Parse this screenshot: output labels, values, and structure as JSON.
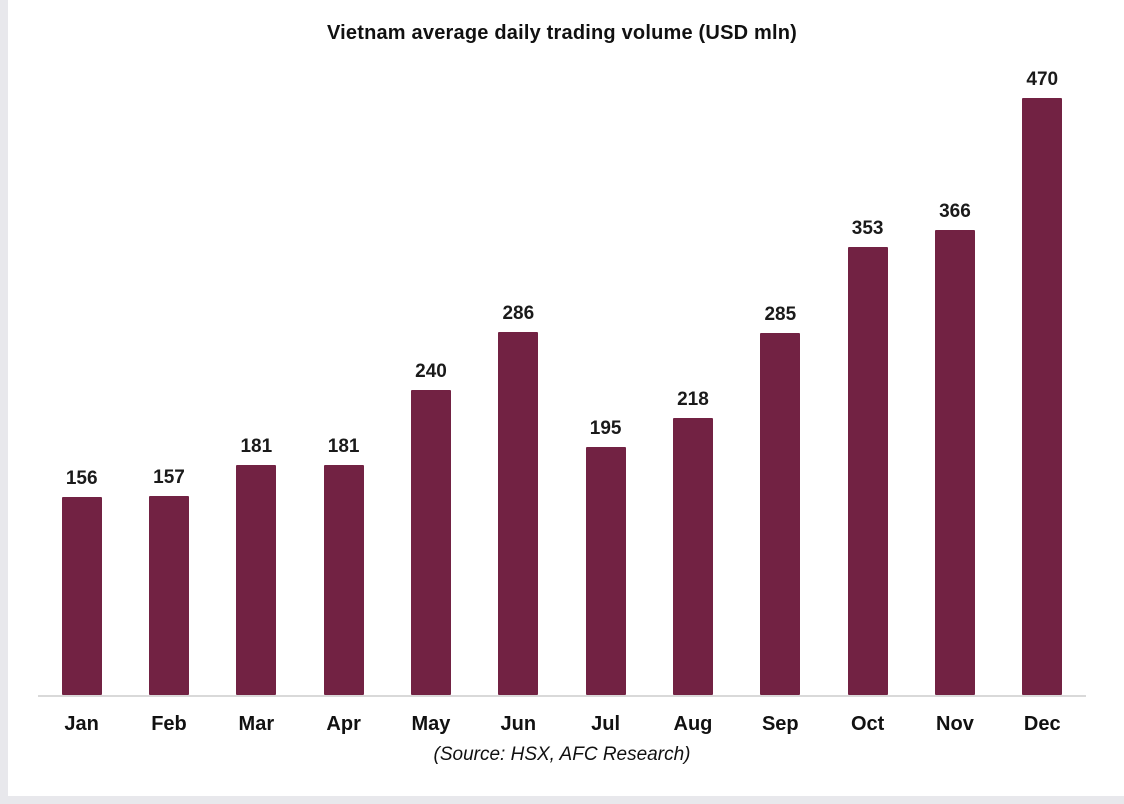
{
  "chart_data": {
    "type": "bar",
    "title": "Vietnam average daily trading volume (USD mln)",
    "categories": [
      "Jan",
      "Feb",
      "Mar",
      "Apr",
      "May",
      "Jun",
      "Jul",
      "Aug",
      "Sep",
      "Oct",
      "Nov",
      "Dec"
    ],
    "values": [
      156,
      157,
      181,
      181,
      240,
      286,
      195,
      218,
      285,
      353,
      366,
      470
    ],
    "xlabel": "",
    "ylabel": "",
    "ylim": [
      0,
      470
    ],
    "grid": false,
    "legend": "none",
    "data_labels": true,
    "bar_color": "#722243",
    "axis_line_color": "#d9d9d9",
    "source": "(Source: HSX, AFC Research)"
  }
}
